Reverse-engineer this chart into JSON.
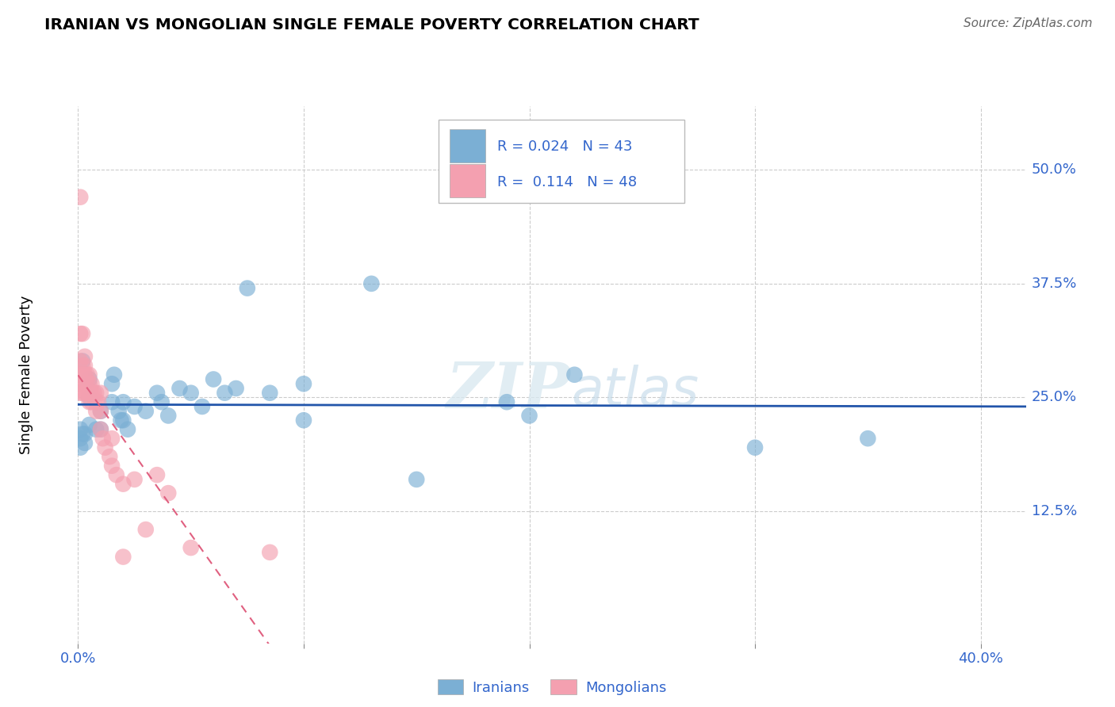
{
  "title": "IRANIAN VS MONGOLIAN SINGLE FEMALE POVERTY CORRELATION CHART",
  "source": "Source: ZipAtlas.com",
  "ylabel": "Single Female Poverty",
  "xlim": [
    0.0,
    0.42
  ],
  "ylim": [
    -0.02,
    0.57
  ],
  "ytick_positions": [
    0.125,
    0.25,
    0.375,
    0.5
  ],
  "ytick_labels": [
    "12.5%",
    "25.0%",
    "37.5%",
    "50.0%"
  ],
  "xtick_positions": [
    0.0,
    0.1,
    0.2,
    0.3,
    0.4
  ],
  "xtick_labels": [
    "0.0%",
    "",
    "",
    "",
    "40.0%"
  ],
  "grid_color": "#cccccc",
  "background_color": "#ffffff",
  "watermark_zip": "ZIP",
  "watermark_atlas": "atlas",
  "legend_R_blue": "0.024",
  "legend_N_blue": "43",
  "legend_R_pink": "0.114",
  "legend_N_pink": "48",
  "blue_color": "#7bafd4",
  "pink_color": "#f4a0b0",
  "trend_blue_color": "#2255aa",
  "trend_pink_color": "#e06080",
  "iranians_x": [
    0.001,
    0.001,
    0.001,
    0.002,
    0.002,
    0.003,
    0.003,
    0.005,
    0.005,
    0.005,
    0.008,
    0.01,
    0.01,
    0.015,
    0.015,
    0.016,
    0.018,
    0.019,
    0.02,
    0.02,
    0.022,
    0.025,
    0.03,
    0.035,
    0.037,
    0.04,
    0.045,
    0.05,
    0.055,
    0.06,
    0.065,
    0.07,
    0.075,
    0.085,
    0.1,
    0.1,
    0.13,
    0.15,
    0.19,
    0.2,
    0.22,
    0.3,
    0.35
  ],
  "iranians_y": [
    0.215,
    0.205,
    0.195,
    0.21,
    0.29,
    0.21,
    0.2,
    0.27,
    0.25,
    0.22,
    0.215,
    0.235,
    0.215,
    0.265,
    0.245,
    0.275,
    0.235,
    0.225,
    0.245,
    0.225,
    0.215,
    0.24,
    0.235,
    0.255,
    0.245,
    0.23,
    0.26,
    0.255,
    0.24,
    0.27,
    0.255,
    0.26,
    0.37,
    0.255,
    0.265,
    0.225,
    0.375,
    0.16,
    0.245,
    0.23,
    0.275,
    0.195,
    0.205
  ],
  "mongolians_x": [
    0.001,
    0.001,
    0.001,
    0.001,
    0.001,
    0.001,
    0.002,
    0.002,
    0.002,
    0.002,
    0.002,
    0.003,
    0.003,
    0.003,
    0.003,
    0.003,
    0.004,
    0.004,
    0.004,
    0.005,
    0.005,
    0.005,
    0.005,
    0.006,
    0.006,
    0.006,
    0.007,
    0.008,
    0.008,
    0.008,
    0.009,
    0.01,
    0.01,
    0.01,
    0.011,
    0.012,
    0.014,
    0.015,
    0.015,
    0.017,
    0.02,
    0.02,
    0.025,
    0.03,
    0.035,
    0.04,
    0.05,
    0.085
  ],
  "mongolians_y": [
    0.47,
    0.32,
    0.29,
    0.275,
    0.265,
    0.255,
    0.32,
    0.285,
    0.275,
    0.265,
    0.255,
    0.295,
    0.285,
    0.275,
    0.265,
    0.255,
    0.275,
    0.265,
    0.255,
    0.275,
    0.265,
    0.255,
    0.245,
    0.265,
    0.255,
    0.245,
    0.255,
    0.255,
    0.245,
    0.235,
    0.245,
    0.255,
    0.235,
    0.215,
    0.205,
    0.195,
    0.185,
    0.205,
    0.175,
    0.165,
    0.155,
    0.075,
    0.16,
    0.105,
    0.165,
    0.145,
    0.085,
    0.08
  ]
}
